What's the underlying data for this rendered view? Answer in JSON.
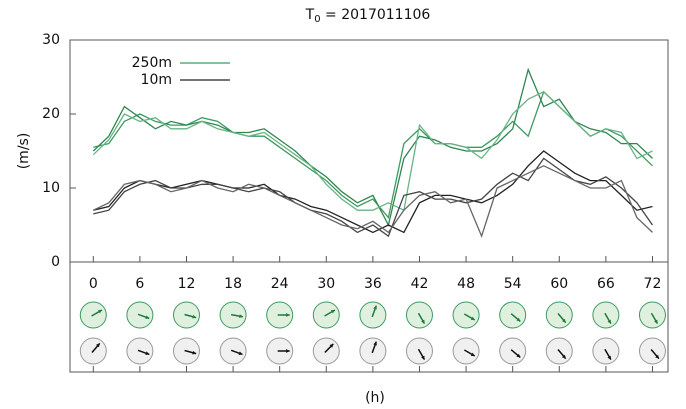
{
  "chart_data": {
    "type": "line",
    "title": {
      "main": "T",
      "sub": "0",
      "rest": " = 2017011106"
    },
    "y_label": "(m/s)",
    "x_label": "(h)",
    "legend": "top-left",
    "x": [
      0,
      2,
      4,
      6,
      8,
      10,
      12,
      14,
      16,
      18,
      20,
      22,
      24,
      26,
      28,
      30,
      32,
      34,
      36,
      38,
      40,
      42,
      44,
      46,
      48,
      50,
      52,
      54,
      56,
      58,
      60,
      62,
      64,
      66,
      68,
      70,
      72
    ],
    "series": [
      {
        "name": "250m",
        "color": "#3d9a60",
        "member_colors": [
          "#3d9a60",
          "#2e8650",
          "#6ab386"
        ],
        "members": [
          [
            15.5,
            16,
            19,
            20,
            19,
            18.5,
            18.5,
            19.5,
            19,
            17.5,
            17,
            17,
            15.5,
            14,
            12.5,
            11,
            9,
            7.5,
            8.5,
            6,
            16,
            18,
            16,
            16,
            15.5,
            15.5,
            17,
            19,
            17,
            23,
            21,
            19,
            17,
            18,
            17,
            15,
            13
          ],
          [
            15,
            17,
            21,
            19.5,
            18,
            19,
            18.5,
            19,
            18.5,
            17.5,
            17.5,
            18,
            16.5,
            15,
            13,
            11.5,
            9.5,
            8,
            9,
            5,
            14,
            17,
            16.5,
            15.5,
            15,
            15,
            16,
            18,
            26,
            21,
            22,
            19,
            18,
            17.5,
            16,
            16,
            14
          ],
          [
            14.5,
            16.5,
            20,
            19,
            19.5,
            18,
            18,
            19,
            18,
            17.5,
            17,
            17.5,
            16,
            14.5,
            13,
            10.5,
            8.5,
            7,
            7,
            8,
            7,
            18.5,
            16,
            16,
            15.5,
            14,
            16.5,
            20,
            22,
            23,
            21,
            19,
            17,
            18,
            17.5,
            14,
            15
          ]
        ]
      },
      {
        "name": "10m",
        "color": "#222222",
        "member_colors": [
          "#222222",
          "#444444",
          "#666666"
        ],
        "members": [
          [
            7,
            7.5,
            10,
            11,
            10.5,
            10,
            10.5,
            11,
            10.5,
            10,
            10,
            10.5,
            9,
            8.5,
            7.5,
            7,
            6,
            5,
            4,
            5,
            4,
            8,
            9,
            9,
            8.5,
            8,
            9,
            10.5,
            13,
            15,
            13.5,
            12,
            11,
            11,
            9,
            7,
            7.5
          ],
          [
            6.5,
            7,
            9.5,
            10.5,
            11,
            10,
            10,
            10.5,
            10.5,
            10,
            9.5,
            10,
            9.5,
            8,
            7,
            6.5,
            5.5,
            4,
            5,
            3.5,
            9,
            9.5,
            8.5,
            8.5,
            8,
            8.5,
            10.5,
            12,
            11,
            14,
            12.5,
            11,
            10.5,
            11.5,
            10,
            8,
            5
          ],
          [
            7,
            8,
            10.5,
            11,
            10.5,
            9.5,
            10,
            11,
            10,
            9.5,
            10.5,
            10,
            9,
            8,
            7,
            6,
            5,
            4.5,
            5.5,
            4,
            7,
            9,
            9.5,
            8,
            8.5,
            3.5,
            10,
            11,
            12,
            13,
            12,
            11,
            10,
            10,
            11,
            6,
            4
          ]
        ]
      }
    ],
    "xlim": [
      -3,
      74
    ],
    "xticks": [
      0,
      6,
      12,
      18,
      24,
      30,
      36,
      42,
      48,
      54,
      60,
      66,
      72
    ],
    "ylim": [
      0,
      30
    ],
    "yticks": [
      0,
      10,
      20,
      30
    ],
    "wind_rows": [
      {
        "color": "#1f7a3a",
        "fill": "#dff0df",
        "stroke": "#3d9a60",
        "directions": [
          60,
          110,
          105,
          100,
          90,
          60,
          20,
          150,
          120,
          130,
          140,
          150,
          150
        ]
      },
      {
        "color": "#111111",
        "fill": "#f0f0f0",
        "stroke": "#999999",
        "directions": [
          40,
          110,
          105,
          110,
          90,
          45,
          20,
          150,
          120,
          130,
          140,
          150,
          140
        ]
      }
    ]
  }
}
